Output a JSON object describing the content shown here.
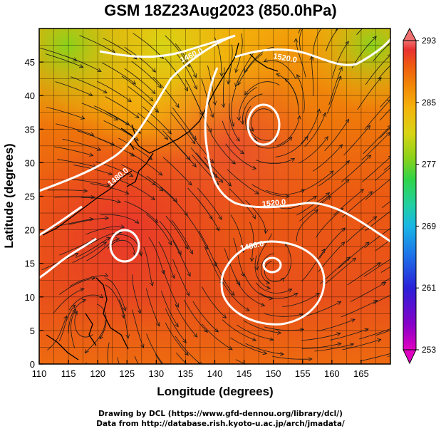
{
  "title": "GSM 18Z23Aug2023 (850.0hPa)",
  "axes": {
    "xlabel": "Longitude (degrees)",
    "ylabel": "Latitude  (degrees)",
    "x_ticks": [
      "110",
      "115",
      "120",
      "125",
      "130",
      "135",
      "140",
      "145",
      "150",
      "155",
      "160",
      "165"
    ],
    "y_ticks": [
      "0",
      "5",
      "10",
      "15",
      "20",
      "25",
      "30",
      "35",
      "40",
      "45"
    ],
    "xlim": [
      110,
      170
    ],
    "ylim": [
      0,
      50
    ]
  },
  "colorbar": {
    "labels": [
      "293",
      "285",
      "277",
      "269",
      "261",
      "253"
    ],
    "min": 253,
    "max": 293,
    "colors": [
      "#e000c0",
      "#8a00c8",
      "#2a20d8",
      "#1e6ee8",
      "#19b6e6",
      "#22d0a0",
      "#2fd44a",
      "#8ad21a",
      "#d8d414",
      "#f4b40c",
      "#f28a06",
      "#ee5a10",
      "#e83030",
      "#f07070"
    ]
  },
  "contours": [
    {
      "label": "1520.0"
    },
    {
      "label": "1520.0"
    },
    {
      "label": "1480.0"
    },
    {
      "label": "1460.0"
    },
    {
      "label": "1480.0"
    }
  ],
  "footer": {
    "line1": "Drawing by DCL (https://www.gfd-dennou.org/library/dcl/)",
    "line2": "Data from http://database.rish.kyoto-u.ac.jp/arch/jmadata/"
  }
}
